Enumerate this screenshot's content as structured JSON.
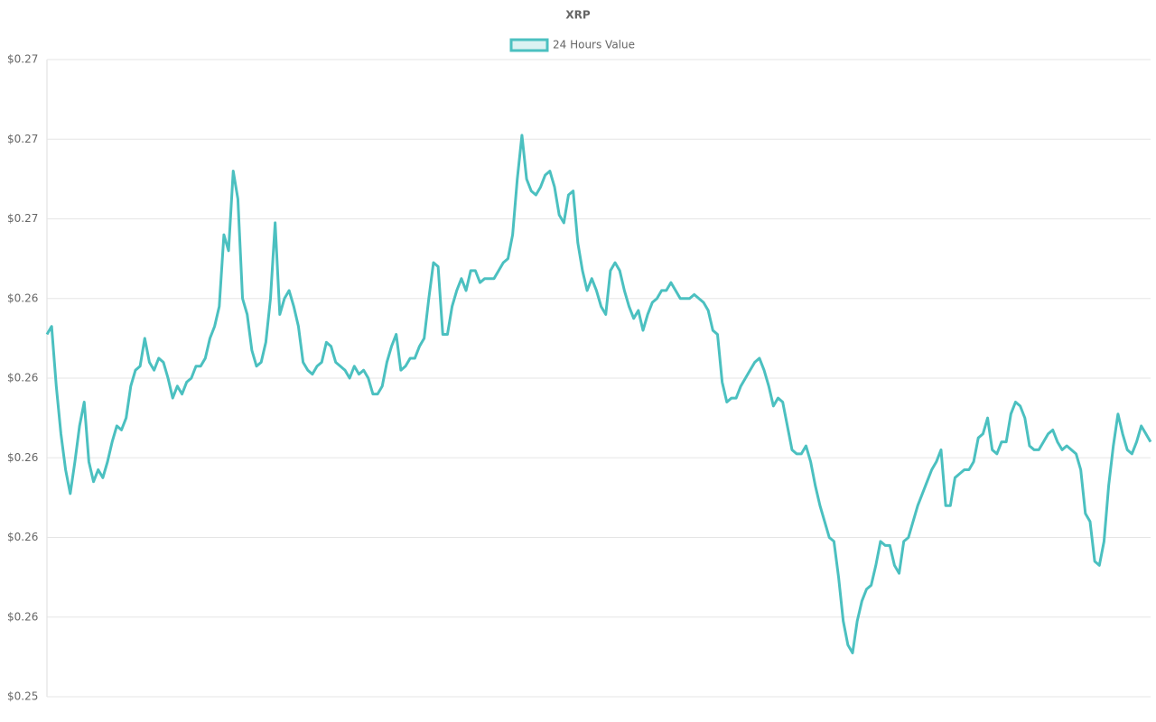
{
  "chart_data": {
    "type": "line",
    "title": "XRP",
    "series": [
      {
        "name": "24 Hours Value",
        "color": "#4bc0c0",
        "fill": "rgba(75,192,192,0.2)",
        "values": [
          0.2631,
          0.2633,
          0.2618,
          0.2606,
          0.2597,
          0.2591,
          0.2599,
          0.2608,
          0.2614,
          0.2599,
          0.2594,
          0.2597,
          0.2595,
          0.2599,
          0.2604,
          0.2608,
          0.2607,
          0.261,
          0.2618,
          0.2622,
          0.2623,
          0.263,
          0.2624,
          0.2622,
          0.2625,
          0.2624,
          0.262,
          0.2615,
          0.2618,
          0.2616,
          0.2619,
          0.262,
          0.2623,
          0.2623,
          0.2625,
          0.263,
          0.2633,
          0.2638,
          0.2656,
          0.2652,
          0.2672,
          0.2665,
          0.264,
          0.2636,
          0.2627,
          0.2623,
          0.2624,
          0.2629,
          0.264,
          0.2659,
          0.2636,
          0.264,
          0.2642,
          0.2638,
          0.2633,
          0.2624,
          0.2622,
          0.2621,
          0.2623,
          0.2624,
          0.2629,
          0.2628,
          0.2624,
          0.2623,
          0.2622,
          0.262,
          0.2623,
          0.2621,
          0.2622,
          0.262,
          0.2616,
          0.2616,
          0.2618,
          0.2624,
          0.2628,
          0.2631,
          0.2622,
          0.2623,
          0.2625,
          0.2625,
          0.2628,
          0.263,
          0.264,
          0.2649,
          0.2648,
          0.2631,
          0.2631,
          0.2638,
          0.2642,
          0.2645,
          0.2642,
          0.2647,
          0.2647,
          0.2644,
          0.2645,
          0.2645,
          0.2645,
          0.2647,
          0.2649,
          0.265,
          0.2656,
          0.267,
          0.2681,
          0.267,
          0.2667,
          0.2666,
          0.2668,
          0.2671,
          0.2672,
          0.2668,
          0.2661,
          0.2659,
          0.2666,
          0.2667,
          0.2654,
          0.2647,
          0.2642,
          0.2645,
          0.2642,
          0.2638,
          0.2636,
          0.2647,
          0.2649,
          0.2647,
          0.2642,
          0.2638,
          0.2635,
          0.2637,
          0.2632,
          0.2636,
          0.2639,
          0.264,
          0.2642,
          0.2642,
          0.2644,
          0.2642,
          0.264,
          0.264,
          0.264,
          0.2641,
          0.264,
          0.2639,
          0.2637,
          0.2632,
          0.2631,
          0.2619,
          0.2614,
          0.2615,
          0.2615,
          0.2618,
          0.262,
          0.2622,
          0.2624,
          0.2625,
          0.2622,
          0.2618,
          0.2613,
          0.2615,
          0.2614,
          0.2608,
          0.2602,
          0.2601,
          0.2601,
          0.2603,
          0.2599,
          0.2593,
          0.2588,
          0.2584,
          0.258,
          0.2579,
          0.257,
          0.2559,
          0.2553,
          0.2551,
          0.2559,
          0.2564,
          0.2567,
          0.2568,
          0.2573,
          0.2579,
          0.2578,
          0.2578,
          0.2573,
          0.2571,
          0.2579,
          0.258,
          0.2584,
          0.2588,
          0.2591,
          0.2594,
          0.2597,
          0.2599,
          0.2602,
          0.2588,
          0.2588,
          0.2595,
          0.2596,
          0.2597,
          0.2597,
          0.2599,
          0.2605,
          0.2606,
          0.261,
          0.2602,
          0.2601,
          0.2604,
          0.2604,
          0.2611,
          0.2614,
          0.2613,
          0.261,
          0.2603,
          0.2602,
          0.2602,
          0.2604,
          0.2606,
          0.2607,
          0.2604,
          0.2602,
          0.2603,
          0.2602,
          0.2601,
          0.2597,
          0.2586,
          0.2584,
          0.2574,
          0.2573,
          0.2579,
          0.2593,
          0.2603,
          0.2611,
          0.2606,
          0.2602,
          0.2601,
          0.2604,
          0.2608,
          0.2606,
          0.2604
        ]
      }
    ],
    "ylim": [
      0.254,
      0.27
    ],
    "yticks": [
      {
        "value": 0.254,
        "label": "$0.25"
      },
      {
        "value": 0.256,
        "label": "$0.26"
      },
      {
        "value": 0.258,
        "label": "$0.26"
      },
      {
        "value": 0.26,
        "label": "$0.26"
      },
      {
        "value": 0.262,
        "label": "$0.26"
      },
      {
        "value": 0.264,
        "label": "$0.26"
      },
      {
        "value": 0.266,
        "label": "$0.27"
      },
      {
        "value": 0.268,
        "label": "$0.27"
      },
      {
        "value": 0.27,
        "label": "$0.27"
      }
    ],
    "grid": true
  }
}
